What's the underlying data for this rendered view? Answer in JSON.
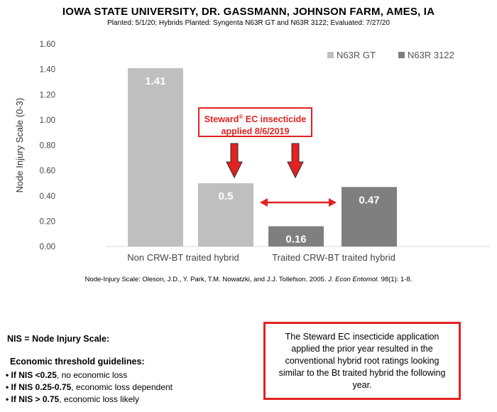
{
  "title": "IOWA STATE UNIVERSITY, DR. GASSMANN, JOHNSON FARM, AMES, IA",
  "subtitle": "Planted: 5/1/20; Hybrids Planted: Syngenta N63R GT and N63R 3122; Evaluated: 7/27/20",
  "chart_data": {
    "type": "bar",
    "title": "IOWA STATE UNIVERSITY, DR. GASSMANN, JOHNSON FARM, AMES, IA",
    "ylabel": "Node Injury Scale (0-3)",
    "xlabel": "",
    "ylim": [
      0,
      1.6
    ],
    "ytick_step": 0.2,
    "yticks": [
      "0.00",
      "0.20",
      "0.40",
      "0.60",
      "0.80",
      "1.00",
      "1.20",
      "1.40",
      "1.60"
    ],
    "categories": [
      "Non CRW-BT traited hybrid",
      "Traited CRW-BT traited hybrid"
    ],
    "series": [
      {
        "name": "N63R GT",
        "color": "#bfbfbf",
        "values": [
          1.41,
          0.5
        ],
        "labels": [
          "1.41",
          "0.5"
        ]
      },
      {
        "name": "N63R 3122",
        "color": "#7f7f7f",
        "values": [
          0.16,
          0.47
        ],
        "labels": [
          "0.16",
          "0.47"
        ]
      }
    ],
    "bar_order": [
      {
        "series": 0,
        "index": 0
      },
      {
        "series": 0,
        "index": 1
      },
      {
        "series": 1,
        "index": 0
      },
      {
        "series": 1,
        "index": 1
      }
    ],
    "legend_position": "top-right",
    "grid": false,
    "annotation": {
      "line1": "Steward",
      "sup": "®",
      "line1_rest": " EC insecticide",
      "line2": "applied 8/6/2019"
    },
    "accent_color": "#e32222"
  },
  "citation": {
    "prefix": "Node-Injury Scale: Oleson, J.D., Y. Park, T.M. Nowatzki, and J.J. Tollefson. 2005.",
    "journal": "J. Econ Entomol.",
    "suffix": "98(1): 1-8."
  },
  "nis_title": "NIS = Node Injury Scale:",
  "econ_title": "Economic threshold guidelines:",
  "guidelines": [
    {
      "bold": "• If NIS <0.25",
      "rest": ", no economic loss"
    },
    {
      "bold": "• If NIS 0.25-0.75",
      "rest": ", economic loss dependent"
    },
    {
      "bold": "• If NIS > 0.75",
      "rest": ", economic loss likely"
    }
  ],
  "note": "The Steward EC insecticide application applied the prior year resulted in the conventional hybrid root ratings looking similar to the Bt traited hybrid the following year."
}
